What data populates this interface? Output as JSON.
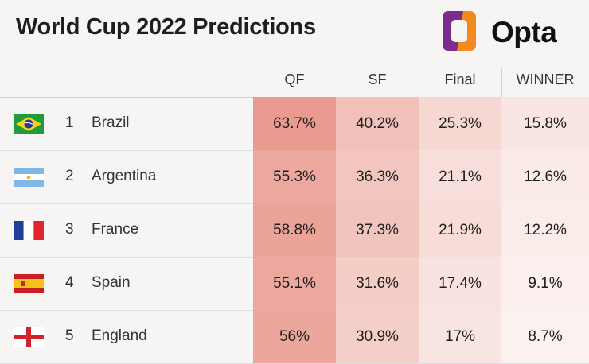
{
  "title": "World Cup 2022 Predictions",
  "brand": {
    "name": "Opta",
    "logo_icon": "opta-logo-icon"
  },
  "columns": [
    "QF",
    "SF",
    "Final",
    "WINNER"
  ],
  "colors": {
    "heat_max": "#e99b90",
    "heat_min": "#fbf1ef",
    "background": "#f6f5f4",
    "logo_orange": "#f28a1f",
    "logo_purple": "#7b2d8e"
  },
  "rows": [
    {
      "rank": "1",
      "country": "Brazil",
      "flag": "brazil-flag-icon",
      "values": [
        "63.7%",
        "40.2%",
        "25.3%",
        "15.8%"
      ]
    },
    {
      "rank": "2",
      "country": "Argentina",
      "flag": "argentina-flag-icon",
      "values": [
        "55.3%",
        "36.3%",
        "21.1%",
        "12.6%"
      ]
    },
    {
      "rank": "3",
      "country": "France",
      "flag": "france-flag-icon",
      "values": [
        "58.8%",
        "37.3%",
        "21.9%",
        "12.2%"
      ]
    },
    {
      "rank": "4",
      "country": "Spain",
      "flag": "spain-flag-icon",
      "values": [
        "55.1%",
        "31.6%",
        "17.4%",
        "9.1%"
      ]
    },
    {
      "rank": "5",
      "country": "England",
      "flag": "england-flag-icon",
      "values": [
        "56%",
        "30.9%",
        "17%",
        "8.7%"
      ]
    }
  ],
  "chart_data": {
    "type": "table",
    "title": "World Cup 2022 Predictions",
    "columns": [
      "QF",
      "SF",
      "Final",
      "WINNER"
    ],
    "rows": [
      {
        "rank": 1,
        "name": "Brazil",
        "values": [
          63.7,
          40.2,
          25.3,
          15.8
        ]
      },
      {
        "rank": 2,
        "name": "Argentina",
        "values": [
          55.3,
          36.3,
          21.1,
          12.6
        ]
      },
      {
        "rank": 3,
        "name": "France",
        "values": [
          58.8,
          37.3,
          21.9,
          12.2
        ]
      },
      {
        "rank": 4,
        "name": "Spain",
        "values": [
          55.1,
          31.6,
          17.4,
          9.1
        ]
      },
      {
        "rank": 5,
        "name": "England",
        "values": [
          56,
          30.9,
          17,
          8.7
        ]
      }
    ],
    "unit": "%"
  }
}
